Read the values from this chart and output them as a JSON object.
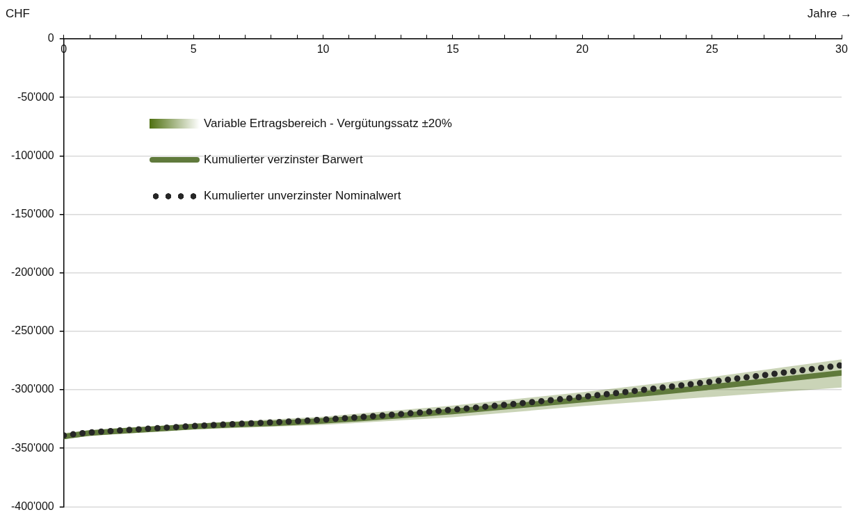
{
  "chart_data": {
    "type": "line",
    "xlabel": "Jahre →",
    "ylabel": "CHF",
    "legend": "top left",
    "grid": "y",
    "annotations": [
      "Variable Ertragsbereich - Vergütungssatz ±20%"
    ],
    "xlim": [
      0,
      30
    ],
    "ylim": [
      -400000,
      0
    ],
    "xticks": [
      0,
      {
        "value": 1,
        "label": null
      },
      {
        "value": 2,
        "label": null
      },
      {
        "value": 3,
        "label": null
      },
      {
        "value": 4,
        "label": null
      },
      5,
      {
        "value": 6,
        "label": null
      },
      {
        "value": 7,
        "label": null
      },
      {
        "value": 8,
        "label": null
      },
      {
        "value": 9,
        "label": null
      },
      10,
      {
        "value": 11,
        "label": null
      },
      {
        "value": 12,
        "label": null
      },
      {
        "value": 13,
        "label": null
      },
      {
        "value": 14,
        "label": null
      },
      15,
      {
        "value": 16,
        "label": null
      },
      {
        "value": 17,
        "label": null
      },
      {
        "value": 18,
        "label": null
      },
      {
        "value": 19,
        "label": null
      },
      20,
      {
        "value": 21,
        "label": null
      },
      {
        "value": 22,
        "label": null
      },
      {
        "value": 23,
        "label": null
      },
      {
        "value": 24,
        "label": null
      },
      25,
      {
        "value": 26,
        "label": null
      },
      {
        "value": 27,
        "label": null
      },
      {
        "value": 28,
        "label": null
      },
      {
        "value": 29,
        "label": null
      },
      30
    ],
    "yticks": [
      {
        "value": 0,
        "label": "0"
      },
      {
        "value": -50000,
        "label": "-50'000"
      },
      {
        "value": -100000,
        "label": "-100'000"
      },
      {
        "value": -150000,
        "label": "-150'000"
      },
      {
        "value": -200000,
        "label": "-200'000"
      },
      {
        "value": -250000,
        "label": "-250'000"
      },
      {
        "value": -300000,
        "label": "-300'000"
      },
      {
        "value": -350000,
        "label": "-350'000"
      },
      {
        "value": -400000,
        "label": "-400'000"
      }
    ],
    "x": [
      0,
      1,
      2,
      5,
      10,
      15,
      20,
      25,
      30
    ],
    "series": [
      {
        "name": "Kumulierter verzinster Barwert",
        "color": "#607a3c",
        "line_style": "solid",
        "values": [
          -340000,
          -337000,
          -335500,
          -331500,
          -326500,
          -318500,
          -308500,
          -297500,
          -285500
        ],
        "lower": [
          -342000,
          -339500,
          -338000,
          -334000,
          -330000,
          -323500,
          -314000,
          -306000,
          -298000
        ],
        "upper": [
          -337000,
          -334500,
          -333000,
          -329000,
          -323000,
          -313500,
          -302000,
          -289000,
          -274000
        ]
      },
      {
        "name": "Kumulierter unverzinster Nominalwert",
        "color": "#262626",
        "line_style": "dotted",
        "values": [
          -339000,
          -336500,
          -335000,
          -331000,
          -325500,
          -317000,
          -306000,
          -293000,
          -279000
        ]
      }
    ]
  }
}
